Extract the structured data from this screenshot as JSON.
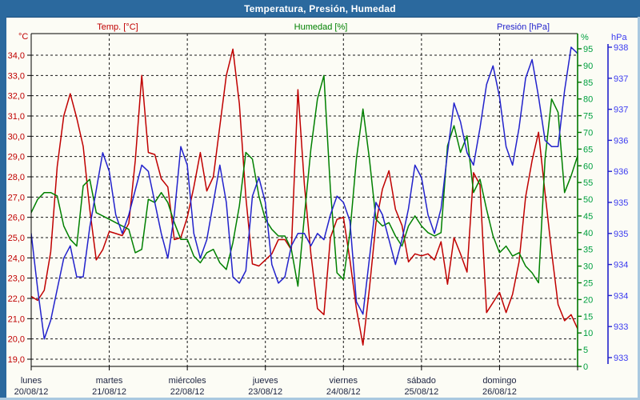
{
  "window": {
    "title": "Temperatura, Presión, Humedad"
  },
  "legend": {
    "temp": {
      "label": "Temp. [°C]",
      "color": "#c00000"
    },
    "humidity": {
      "label": "Humedad [%]",
      "color": "#008000"
    },
    "pressure": {
      "label": "Presión [hPa]",
      "color": "#2222cc"
    }
  },
  "chart_data": {
    "type": "line",
    "title": "Temperatura, Presión, Humedad",
    "x_unit": "hours",
    "x_range": [
      0,
      168
    ],
    "sample_step_hours": 2,
    "grid": "dashed-black, horizontal per 1°C, vertical per day",
    "days": [
      {
        "name": "lunes",
        "date": "20/08/12"
      },
      {
        "name": "martes",
        "date": "21/08/12"
      },
      {
        "name": "miércoles",
        "date": "22/08/12"
      },
      {
        "name": "jueves",
        "date": "23/08/12"
      },
      {
        "name": "viernes",
        "date": "24/08/12"
      },
      {
        "name": "sábado",
        "date": "25/08/12"
      },
      {
        "name": "domingo",
        "date": "26/08/12"
      }
    ],
    "axes": {
      "temperature": {
        "unit": "°C",
        "side": "left",
        "min": 19,
        "max": 34,
        "tick_step": 1,
        "line_color": "#000000",
        "label_color": "#c00000",
        "tick_labels_top_to_bottom": [
          "34,0",
          "33,0",
          "32,0",
          "31,0",
          "30,0",
          "29,0",
          "28,0",
          "27,0",
          "26,0",
          "25,0",
          "24,0",
          "23,0",
          "22,0",
          "21,0",
          "20,0",
          "19,0"
        ]
      },
      "humidity": {
        "unit": "%",
        "side": "right-inner",
        "min": 0,
        "max": 95,
        "tick_step": 5,
        "line_color": "#007700",
        "label_color": "#00a040",
        "tick_labels_top_to_bottom": [
          "95",
          "90",
          "85",
          "80",
          "75",
          "70",
          "65",
          "60",
          "55",
          "50",
          "45",
          "40",
          "35",
          "30",
          "25",
          "20",
          "15",
          "10",
          "5",
          "0"
        ]
      },
      "pressure": {
        "unit": "hPa",
        "side": "right-outer",
        "min": 933,
        "max": 938,
        "tick_step": 0.5,
        "line_color": "#2222cc",
        "label_color": "#3b3bf0",
        "tick_labels_top_to_bottom": [
          "938",
          "937",
          "937",
          "936",
          "936",
          "935",
          "935",
          "934",
          "934",
          "933",
          "933"
        ]
      }
    },
    "series": [
      {
        "name": "Temp. [°C]",
        "axis": "temperature",
        "color": "#c00000",
        "values": [
          22.1,
          21.9,
          22.4,
          24.3,
          28.5,
          31.0,
          32.1,
          30.9,
          29.5,
          26.4,
          23.9,
          24.4,
          25.3,
          25.2,
          25.1,
          25.7,
          28.8,
          33.0,
          29.2,
          29.1,
          27.9,
          27.5,
          24.9,
          25.0,
          26.0,
          27.5,
          29.2,
          27.3,
          28.0,
          30.5,
          33.0,
          34.3,
          31.6,
          27.0,
          23.7,
          23.6,
          23.9,
          24.2,
          24.9,
          24.9,
          24.4,
          32.3,
          27.6,
          24.2,
          21.5,
          21.2,
          25.0,
          25.9,
          26.0,
          23.9,
          21.5,
          19.7,
          22.5,
          25.7,
          27.4,
          28.3,
          26.4,
          25.6,
          23.8,
          24.2,
          24.1,
          24.2,
          23.9,
          24.8,
          22.7,
          25.0,
          24.2,
          23.3,
          28.2,
          27.6,
          21.3,
          21.8,
          22.3,
          21.3,
          22.2,
          23.8,
          27.0,
          28.8,
          30.2,
          27.2,
          24.3,
          21.7,
          20.9,
          21.2,
          20.5
        ]
      },
      {
        "name": "Humedad [%]",
        "axis": "humidity",
        "color": "#008000",
        "values": [
          46,
          50,
          52,
          52,
          51,
          42,
          38,
          36,
          54,
          56,
          46,
          45,
          44,
          43,
          42,
          41,
          34,
          35,
          50,
          49,
          52,
          49,
          43,
          38,
          38,
          33,
          31,
          34,
          35,
          31,
          29,
          37,
          48,
          64,
          62,
          51,
          44,
          41,
          39,
          39,
          35,
          24,
          45,
          65,
          80,
          87,
          53,
          28,
          26,
          40,
          62,
          77,
          62,
          44,
          42,
          43,
          39,
          36,
          42,
          45,
          42,
          40,
          39,
          40,
          66,
          72,
          64,
          69,
          52,
          56,
          47,
          39,
          34,
          36,
          33,
          34,
          30,
          28,
          25,
          62,
          80,
          76,
          52,
          57,
          63
        ]
      },
      {
        "name": "Presión [hPa]",
        "axis": "pressure",
        "color": "#2222cc",
        "values": [
          935.0,
          934.1,
          933.3,
          933.6,
          934.1,
          934.6,
          934.8,
          934.3,
          934.3,
          935.1,
          935.7,
          936.3,
          936.0,
          935.3,
          935.0,
          935.3,
          935.7,
          936.1,
          936.0,
          935.5,
          935.0,
          934.6,
          935.3,
          936.4,
          936.1,
          935.0,
          934.6,
          934.9,
          935.5,
          936.1,
          935.5,
          934.3,
          934.2,
          934.4,
          935.6,
          935.9,
          935.5,
          934.5,
          934.2,
          934.3,
          934.8,
          935.0,
          935.0,
          934.8,
          935.0,
          934.9,
          935.3,
          935.6,
          935.5,
          935.2,
          933.9,
          933.7,
          934.6,
          935.5,
          935.3,
          934.9,
          934.5,
          934.9,
          935.4,
          936.1,
          935.9,
          935.3,
          935.0,
          935.4,
          936.3,
          937.1,
          936.8,
          936.3,
          936.1,
          936.7,
          937.4,
          937.7,
          937.2,
          936.4,
          936.1,
          936.7,
          937.5,
          937.8,
          937.2,
          936.5,
          936.4,
          936.4,
          937.3,
          938.0,
          937.9
        ]
      }
    ]
  }
}
